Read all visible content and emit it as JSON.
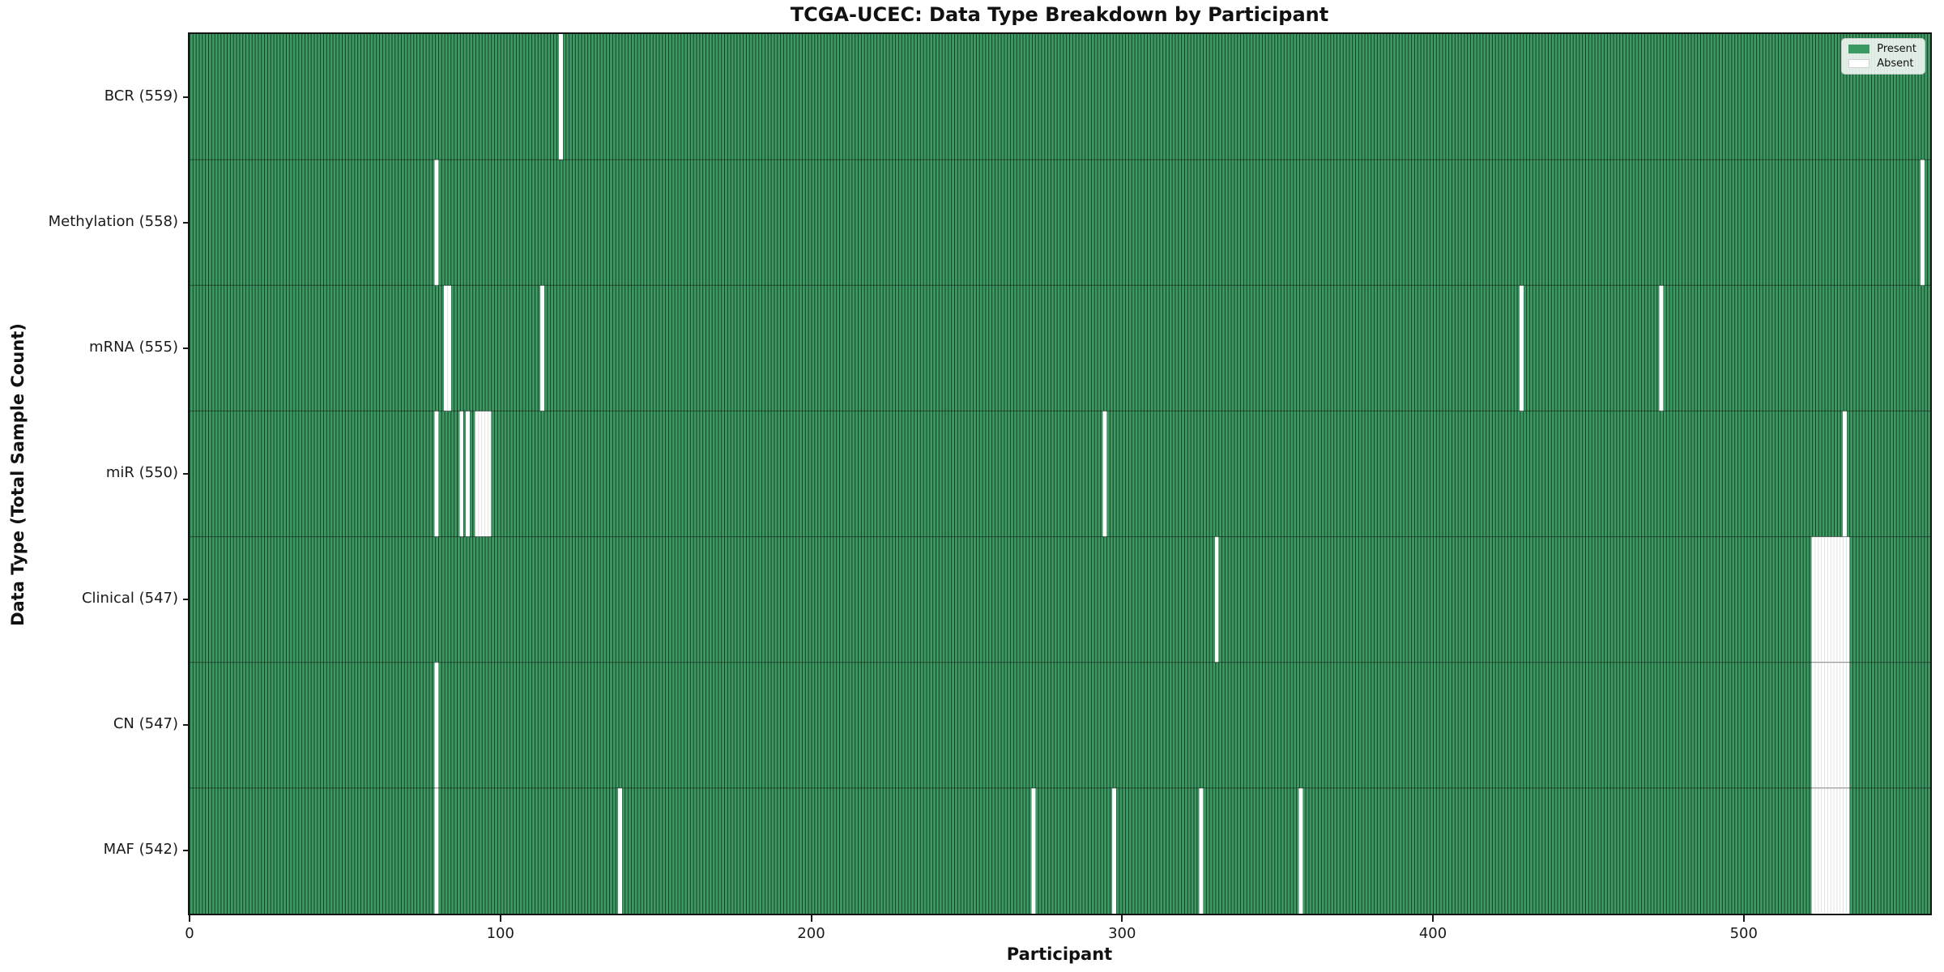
{
  "title": "TCGA-UCEC: Data Type Breakdown by Participant",
  "chart_data": {
    "type": "heatmap",
    "title": "TCGA-UCEC: Data Type Breakdown by Participant",
    "xlabel": "Participant",
    "ylabel": "Data Type (Total Sample Count)",
    "n_participants": 560,
    "x_axis_range": [
      0,
      560
    ],
    "x_ticks": [
      0,
      100,
      200,
      300,
      400,
      500
    ],
    "grid": false,
    "colors": {
      "present": "#3A9A62",
      "bar_edge": "#1B3A27",
      "absent": "#FFFFFF",
      "row_separator": "#101010",
      "plot_border": "#141414"
    },
    "legend": {
      "position": "upper-right",
      "items": [
        {
          "label": "Present",
          "color": "#3A9A62"
        },
        {
          "label": "Absent",
          "color": "#FFFFFF"
        }
      ]
    },
    "rows": [
      {
        "data_type": "BCR",
        "total": 559,
        "label": "BCR (559)",
        "absent_participants": [
          119
        ]
      },
      {
        "data_type": "Methylation",
        "total": 558,
        "label": "Methylation (558)",
        "absent_participants": [
          79,
          557
        ]
      },
      {
        "data_type": "mRNA",
        "total": 555,
        "label": "mRNA (555)",
        "absent_participants": [
          82,
          83,
          113,
          428,
          473
        ]
      },
      {
        "data_type": "miR",
        "total": 550,
        "label": "miR (550)",
        "absent_participants": [
          79,
          87,
          89,
          92,
          93,
          94,
          95,
          96,
          294,
          532
        ]
      },
      {
        "data_type": "Clinical",
        "total": 547,
        "label": "Clinical (547)",
        "absent_participants": [
          330,
          522,
          523,
          524,
          525,
          526,
          527,
          528,
          529,
          530,
          531,
          532,
          533
        ]
      },
      {
        "data_type": "CN",
        "total": 547,
        "label": "CN (547)",
        "absent_participants": [
          79,
          522,
          523,
          524,
          525,
          526,
          527,
          528,
          529,
          530,
          531,
          532,
          533
        ]
      },
      {
        "data_type": "MAF",
        "total": 542,
        "label": "MAF (542)",
        "absent_participants": [
          79,
          138,
          271,
          297,
          325,
          357,
          522,
          523,
          524,
          525,
          526,
          527,
          528,
          529,
          530,
          531,
          532,
          533
        ]
      }
    ]
  }
}
